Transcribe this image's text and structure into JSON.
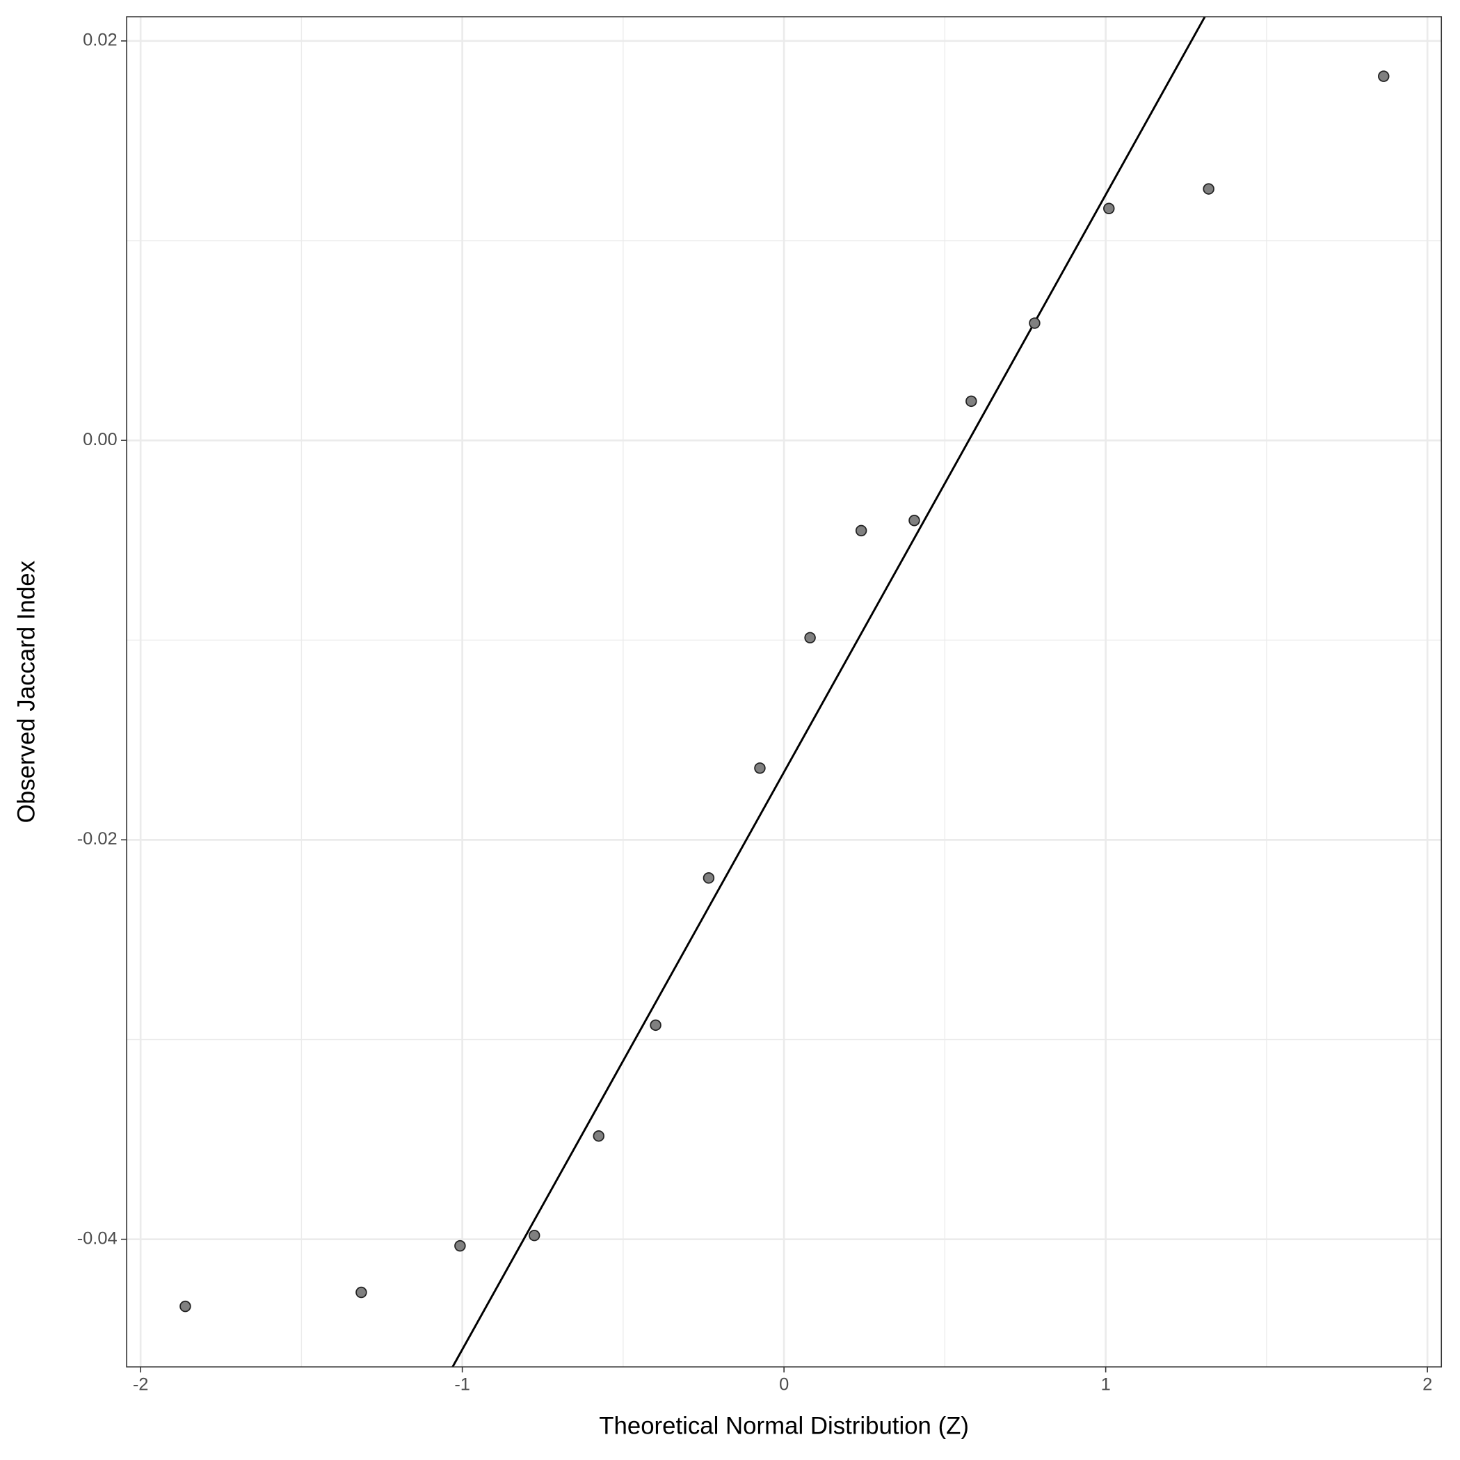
{
  "chart_data": {
    "type": "scatter",
    "x_label": "Theoretical Normal Distribution (Z)",
    "y_label": "Observed Jaccard Index",
    "x": [
      -1.861,
      -1.314,
      -1.007,
      -0.776,
      -0.576,
      -0.399,
      -0.234,
      -0.075,
      0.081,
      0.24,
      0.405,
      0.582,
      0.779,
      1.01,
      1.32,
      1.864
    ],
    "values": [
      -0.04336,
      -0.04266,
      -0.04033,
      -0.03981,
      -0.03483,
      -0.02928,
      -0.02191,
      -0.01641,
      -0.00988,
      -0.00452,
      -0.00401,
      0.00196,
      0.00587,
      0.01161,
      0.01259,
      0.01823
    ],
    "color": "#808080",
    "reference_line": {
      "intercept": -0.01661,
      "slope": 0.02891,
      "color": "#000000"
    },
    "xlim": [
      -2.0434,
      2.0434
    ],
    "ylim": [
      -0.04639,
      0.02121
    ],
    "xticks": [
      -2,
      -1,
      0,
      1,
      2
    ],
    "yticks": [
      {
        "value": -0.04,
        "label": "-0.04"
      },
      {
        "value": -0.02,
        "label": "-0.02"
      },
      {
        "value": 0,
        "label": "0.00"
      },
      {
        "value": 0.02,
        "label": "0.02"
      }
    ],
    "grid": true,
    "minor_grid": true
  }
}
